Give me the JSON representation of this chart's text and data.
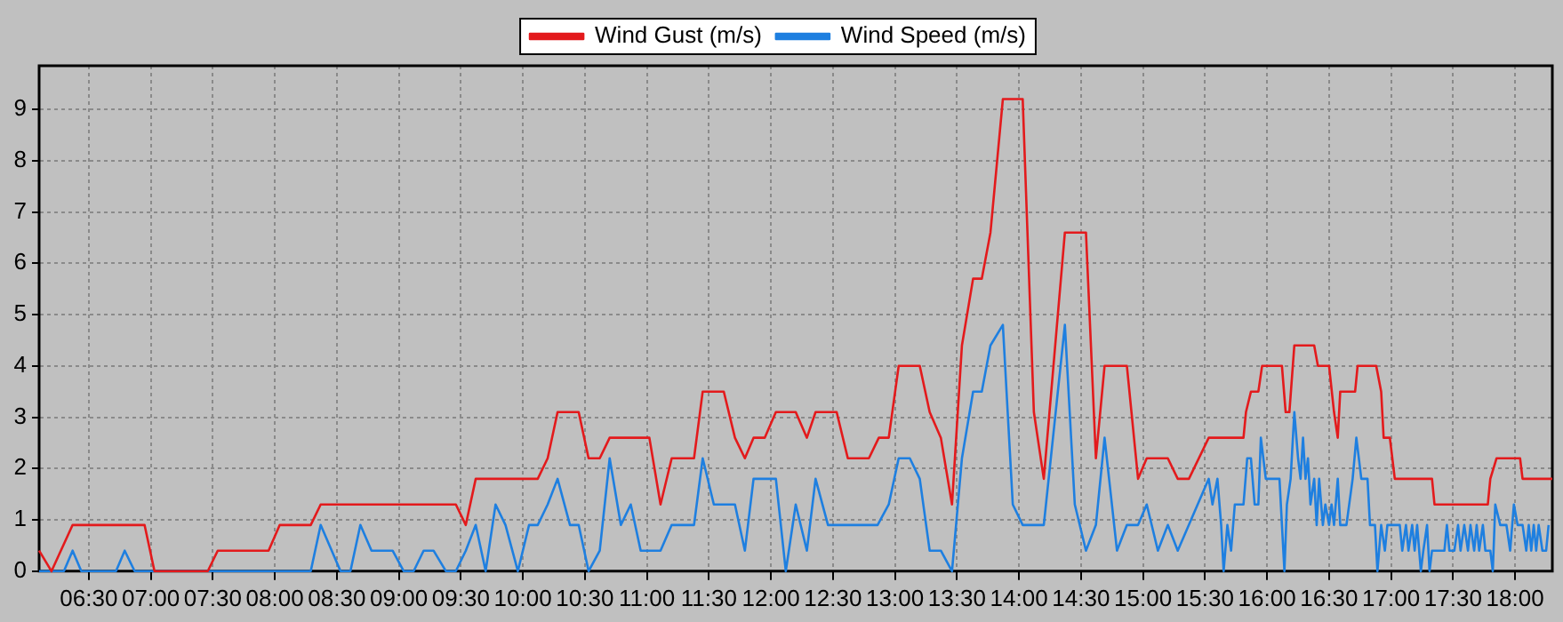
{
  "chart_data": {
    "type": "line",
    "xlim": [
      6.1,
      18.3
    ],
    "ylim": [
      0,
      9.85
    ],
    "yticks": [
      0,
      1,
      2,
      3,
      4,
      5,
      6,
      7,
      8,
      9
    ],
    "xticks": [
      {
        "value": 6.5,
        "label": "06:30"
      },
      {
        "value": 7,
        "label": "07:00"
      },
      {
        "value": 7.5,
        "label": "07:30"
      },
      {
        "value": 8,
        "label": "08:00"
      },
      {
        "value": 8.5,
        "label": "08:30"
      },
      {
        "value": 9,
        "label": "09:00"
      },
      {
        "value": 9.5,
        "label": "09:30"
      },
      {
        "value": 10,
        "label": "10:00"
      },
      {
        "value": 10.5,
        "label": "10:30"
      },
      {
        "value": 11,
        "label": "11:00"
      },
      {
        "value": 11.5,
        "label": "11:30"
      },
      {
        "value": 12,
        "label": "12:00"
      },
      {
        "value": 12.5,
        "label": "12:30"
      },
      {
        "value": 13,
        "label": "13:00"
      },
      {
        "value": 13.5,
        "label": "13:30"
      },
      {
        "value": 14,
        "label": "14:00"
      },
      {
        "value": 14.5,
        "label": "14:30"
      },
      {
        "value": 15,
        "label": "15:00"
      },
      {
        "value": 15.5,
        "label": "15:30"
      },
      {
        "value": 16,
        "label": "16:00"
      },
      {
        "value": 16.5,
        "label": "16:30"
      },
      {
        "value": 17,
        "label": "17:00"
      },
      {
        "value": 17.5,
        "label": "17:30"
      },
      {
        "value": 18,
        "label": "18:00"
      }
    ],
    "grid": true,
    "legend": "top",
    "marker": "none",
    "line_style": "solid",
    "series": [
      {
        "name": "Wind Gust (m/s)",
        "color": "#e31a1c",
        "x": [
          6.1,
          6.2,
          6.37,
          6.95,
          7.03,
          7.46,
          7.54,
          7.95,
          8.04,
          8.29,
          8.37,
          9.46,
          9.54,
          9.62,
          10.12,
          10.2,
          10.28,
          10.45,
          10.53,
          10.62,
          10.7,
          11.02,
          11.11,
          11.2,
          11.38,
          11.45,
          11.62,
          11.71,
          11.79,
          11.86,
          11.95,
          12.04,
          12.2,
          12.29,
          12.36,
          12.53,
          12.62,
          12.79,
          12.87,
          12.95,
          13.03,
          13.2,
          13.28,
          13.37,
          13.46,
          13.54,
          13.63,
          13.7,
          13.77,
          13.87,
          14.03,
          14.12,
          14.2,
          14.37,
          14.54,
          14.62,
          14.69,
          14.87,
          14.96,
          15.03,
          15.2,
          15.28,
          15.37,
          15.53,
          15.81,
          15.83,
          15.87,
          15.93,
          15.96,
          16.12,
          16.15,
          16.18,
          16.22,
          16.38,
          16.41,
          16.5,
          16.54,
          16.57,
          16.59,
          16.71,
          16.73,
          16.88,
          16.92,
          16.94,
          16.99,
          17.03,
          17.33,
          17.35,
          17.78,
          17.8,
          17.85,
          18.04,
          18.06,
          18.3
        ],
        "values": [
          0.4,
          0,
          0.9,
          0.9,
          0,
          0,
          0.4,
          0.4,
          0.9,
          0.9,
          1.3,
          1.3,
          0.9,
          1.8,
          1.8,
          2.2,
          3.1,
          3.1,
          2.2,
          2.2,
          2.6,
          2.6,
          1.3,
          2.2,
          2.2,
          3.5,
          3.5,
          2.6,
          2.2,
          2.6,
          2.6,
          3.1,
          3.1,
          2.6,
          3.1,
          3.1,
          2.2,
          2.2,
          2.6,
          2.6,
          4.0,
          4.0,
          3.1,
          2.6,
          1.3,
          4.4,
          5.7,
          5.7,
          6.6,
          9.2,
          9.2,
          3.1,
          1.8,
          6.6,
          6.6,
          2.2,
          4.0,
          4.0,
          1.8,
          2.2,
          2.2,
          1.8,
          1.8,
          2.6,
          2.6,
          3.1,
          3.5,
          3.5,
          4.0,
          4.0,
          3.1,
          3.1,
          4.4,
          4.4,
          4.0,
          4.0,
          3.1,
          2.6,
          3.5,
          3.5,
          4.0,
          4.0,
          3.5,
          2.6,
          2.6,
          1.8,
          1.8,
          1.3,
          1.3,
          1.8,
          2.2,
          2.2,
          1.8,
          1.8
        ]
      },
      {
        "name": "Wind Speed (m/s)",
        "color": "#1e7fe0",
        "x": [
          6.1,
          6.3,
          6.37,
          6.44,
          6.72,
          6.79,
          6.87,
          8.29,
          8.37,
          8.53,
          8.61,
          8.69,
          8.78,
          8.95,
          9.04,
          9.12,
          9.2,
          9.28,
          9.38,
          9.46,
          9.54,
          9.62,
          9.7,
          9.78,
          9.86,
          9.96,
          10.05,
          10.12,
          10.2,
          10.28,
          10.38,
          10.45,
          10.53,
          10.62,
          10.7,
          10.79,
          10.87,
          10.95,
          11.11,
          11.2,
          11.38,
          11.45,
          11.54,
          11.71,
          11.79,
          11.86,
          12.04,
          12.12,
          12.2,
          12.29,
          12.36,
          12.46,
          12.86,
          12.95,
          13.03,
          13.12,
          13.2,
          13.28,
          13.37,
          13.46,
          13.54,
          13.63,
          13.7,
          13.77,
          13.87,
          13.95,
          14.03,
          14.2,
          14.37,
          14.45,
          14.54,
          14.62,
          14.69,
          14.79,
          14.87,
          14.96,
          15.03,
          15.12,
          15.2,
          15.28,
          15.53,
          15.56,
          15.6,
          15.63,
          15.65,
          15.68,
          15.71,
          15.74,
          15.81,
          15.84,
          15.87,
          15.9,
          15.93,
          15.95,
          15.99,
          16.1,
          16.14,
          16.16,
          16.19,
          16.22,
          16.25,
          16.27,
          16.29,
          16.31,
          16.33,
          16.35,
          16.38,
          16.4,
          16.42,
          16.45,
          16.47,
          16.5,
          16.52,
          16.54,
          16.57,
          16.59,
          16.64,
          16.69,
          16.72,
          16.76,
          16.81,
          16.83,
          16.87,
          16.89,
          16.92,
          16.95,
          16.97,
          17.07,
          17.09,
          17.12,
          17.14,
          17.17,
          17.19,
          17.21,
          17.24,
          17.26,
          17.29,
          17.31,
          17.33,
          17.43,
          17.45,
          17.47,
          17.51,
          17.54,
          17.56,
          17.59,
          17.62,
          17.64,
          17.67,
          17.69,
          17.71,
          17.74,
          17.76,
          17.8,
          17.82,
          17.84,
          17.88,
          17.93,
          17.96,
          17.99,
          18.02,
          18.06,
          18.09,
          18.11,
          18.13,
          18.15,
          18.17,
          18.19,
          18.22,
          18.25,
          18.27
        ],
        "values": [
          0,
          0,
          0.4,
          0,
          0,
          0.4,
          0,
          0,
          0.9,
          0,
          0,
          0.9,
          0.4,
          0.4,
          0,
          0,
          0.4,
          0.4,
          0,
          0,
          0.4,
          0.9,
          0,
          1.3,
          0.9,
          0,
          0.9,
          0.9,
          1.3,
          1.8,
          0.9,
          0.9,
          0,
          0.4,
          2.2,
          0.9,
          1.3,
          0.4,
          0.4,
          0.9,
          0.9,
          2.2,
          1.3,
          1.3,
          0.4,
          1.8,
          1.8,
          0,
          1.3,
          0.4,
          1.8,
          0.9,
          0.9,
          1.3,
          2.2,
          2.2,
          1.8,
          0.4,
          0.4,
          0,
          2.2,
          3.5,
          3.5,
          4.4,
          4.8,
          1.3,
          0.9,
          0.9,
          4.8,
          1.3,
          0.4,
          0.9,
          2.6,
          0.4,
          0.9,
          0.9,
          1.3,
          0.4,
          0.9,
          0.4,
          1.8,
          1.3,
          1.8,
          0.9,
          0,
          0.9,
          0.4,
          1.3,
          1.3,
          2.2,
          2.2,
          1.3,
          1.3,
          2.6,
          1.8,
          1.8,
          0,
          1.3,
          1.8,
          3.1,
          2.2,
          1.8,
          2.6,
          1.8,
          2.2,
          1.3,
          1.8,
          0.9,
          1.8,
          0.9,
          1.3,
          0.9,
          1.3,
          0.9,
          1.8,
          0.9,
          0.9,
          1.8,
          2.6,
          1.8,
          1.8,
          0.9,
          0.9,
          0,
          0.9,
          0.4,
          0.9,
          0.9,
          0.4,
          0.9,
          0.4,
          0.9,
          0.4,
          0.9,
          0,
          0.4,
          0.9,
          0,
          0.4,
          0.4,
          0.9,
          0.4,
          0.4,
          0.9,
          0.4,
          0.9,
          0.4,
          0.9,
          0.4,
          0.9,
          0.4,
          0.9,
          0.4,
          0.4,
          0,
          1.3,
          0.9,
          0.9,
          0.4,
          1.3,
          0.9,
          0.9,
          0.4,
          0.9,
          0.4,
          0.9,
          0.4,
          0.9,
          0.4,
          0.4,
          0.9
        ]
      }
    ]
  }
}
